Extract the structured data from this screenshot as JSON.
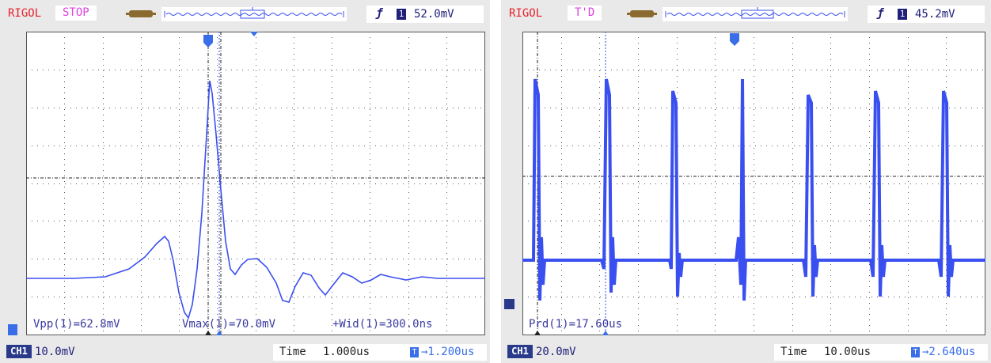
{
  "scopes": [
    {
      "brand": "RIGOL",
      "status": "STOP",
      "trigger": {
        "channel": "1",
        "level": "52.0mV"
      },
      "measurements": [
        "Vpp(1)=62.8mV",
        "Vmax(1)=70.0mV",
        "+Wid(1)=300.0ns"
      ],
      "channel": {
        "label": "CH1",
        "scale": "10.0mV"
      },
      "time": {
        "label": "Time",
        "value": "1.000us",
        "offset": "→1.200us"
      }
    },
    {
      "brand": "RIGOL",
      "status": "T'D",
      "trigger": {
        "channel": "1",
        "level": "45.2mV"
      },
      "measurements": [
        "Prd(1)=17.60us"
      ],
      "channel": {
        "label": "CH1",
        "scale": "20.0mV"
      },
      "time": {
        "label": "Time",
        "value": "10.00us",
        "offset": "→2.640us"
      }
    }
  ],
  "colors": {
    "trace": "#3a4ff0",
    "brand": "#e8202a",
    "status": "#e040e0",
    "grid": "#555555"
  }
}
